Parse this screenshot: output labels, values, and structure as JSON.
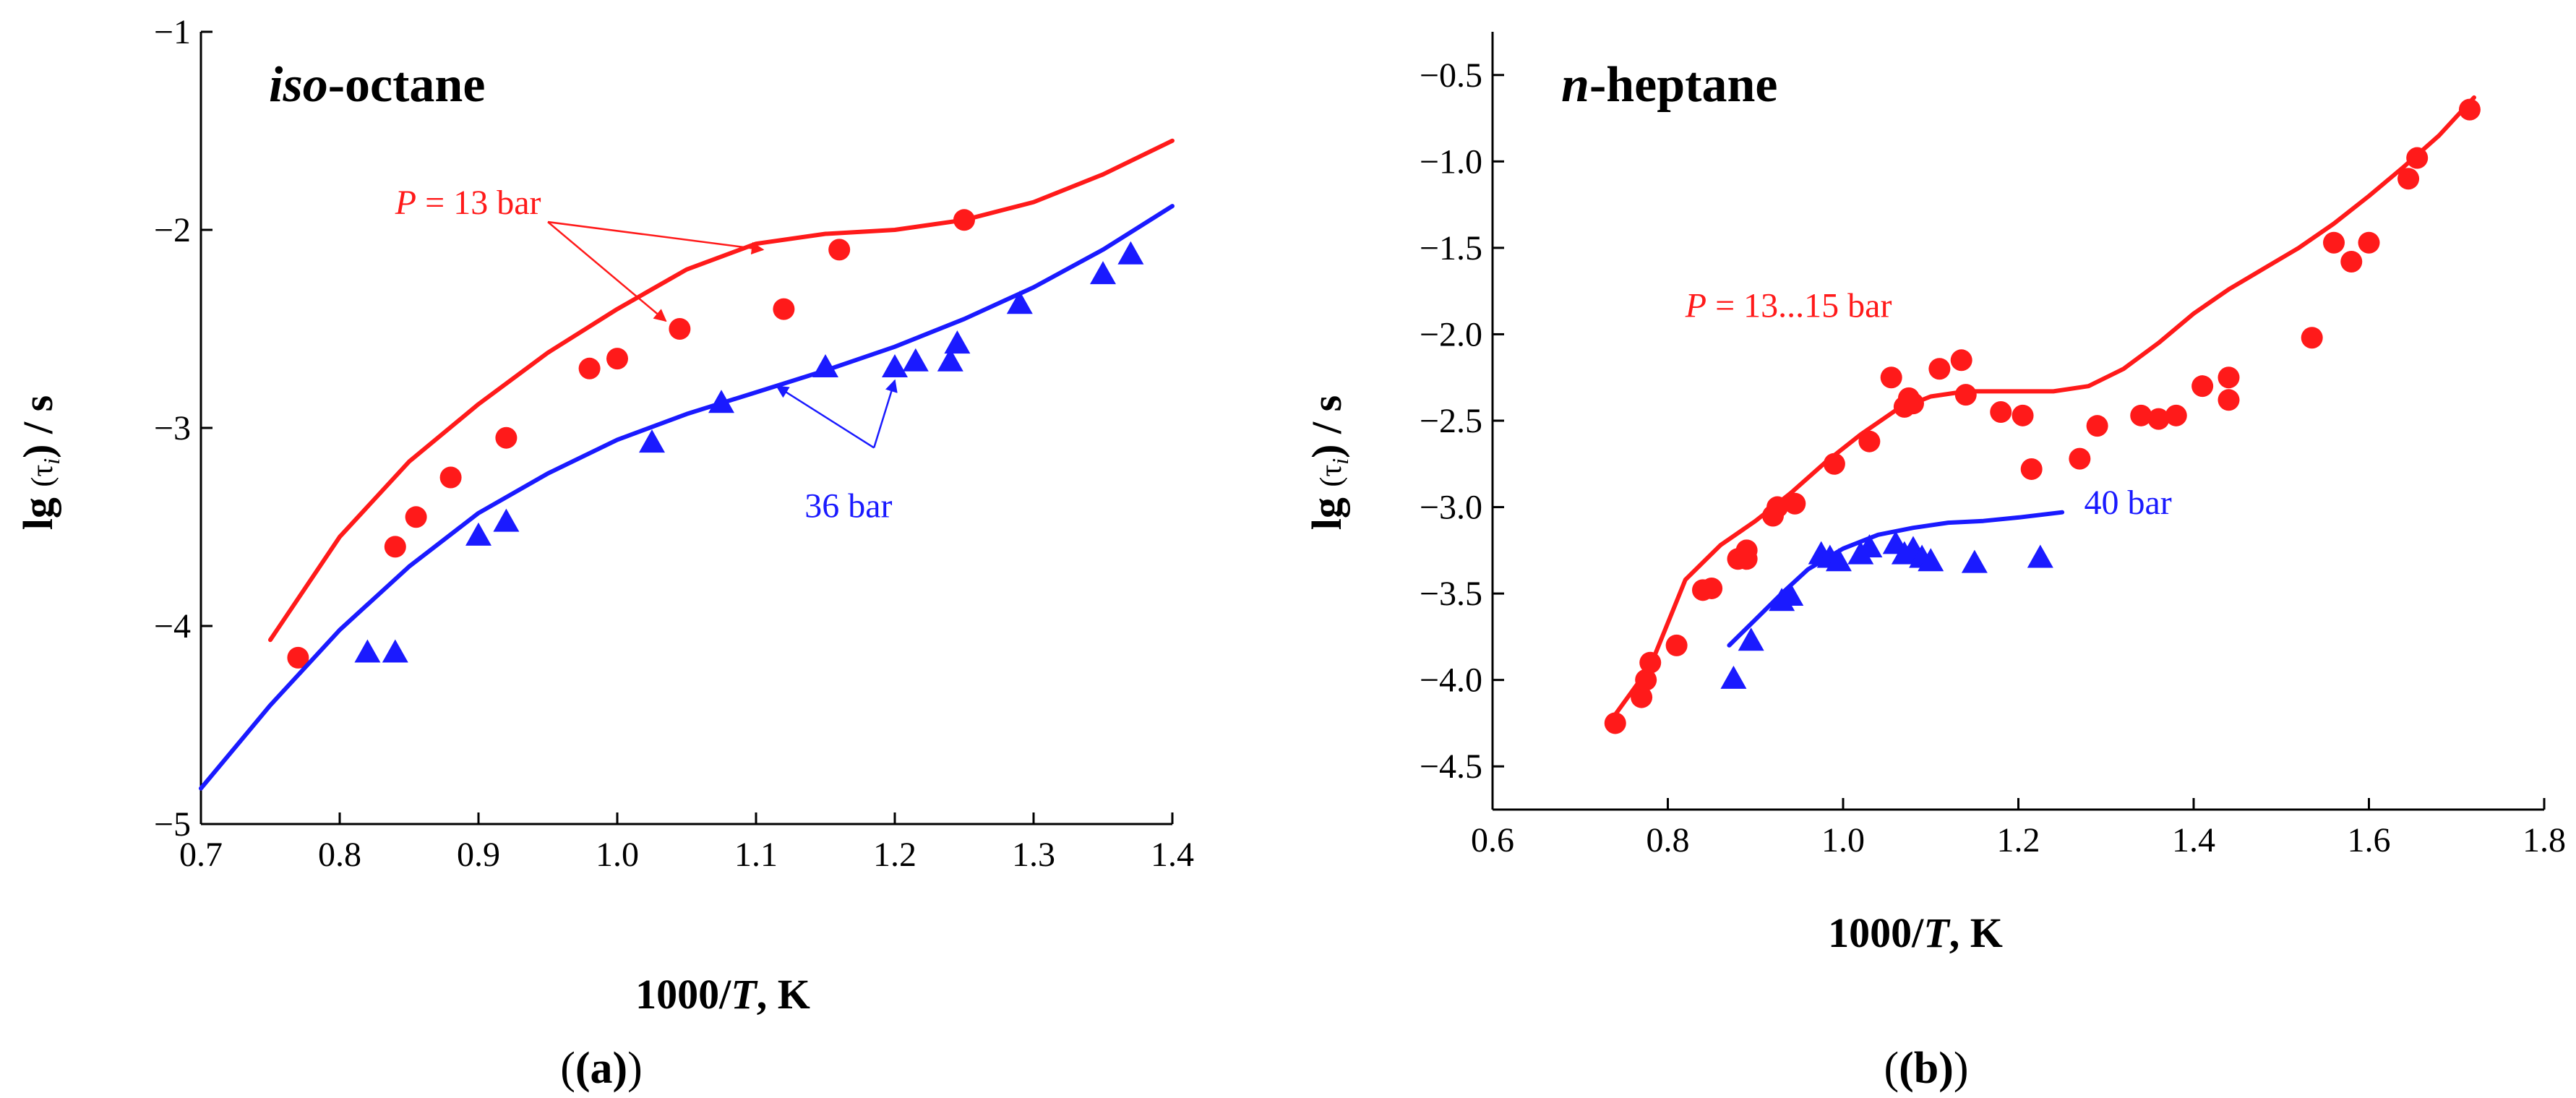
{
  "colors": {
    "red": "#ff1a1a",
    "blue": "#1a1aff",
    "axis": "#000000"
  },
  "chart_data": [
    {
      "type": "scatter",
      "title_italic": "iso",
      "title_rest": "-octane",
      "xlabel_pre": "1000/",
      "xlabel_var": "T",
      "xlabel_post": ", K",
      "ylabel_pre": "lg ",
      "ylabel_sym": "(τ",
      "ylabel_sub": "i",
      "ylabel_post": ") / s",
      "xlim": [
        0.7,
        1.4
      ],
      "ylim": [
        -5,
        -1
      ],
      "xticks": [
        0.7,
        0.8,
        0.9,
        1.0,
        1.1,
        1.2,
        1.3,
        1.4
      ],
      "xtick_labels": [
        "0.7",
        "0.8",
        "0.9",
        "1.0",
        "1.1",
        "1.2",
        "1.3",
        "1.4"
      ],
      "yticks": [
        -5,
        -4,
        -3,
        -2,
        -1
      ],
      "ytick_labels": [
        "−5",
        "−4",
        "−3",
        "−2",
        "−1"
      ],
      "caption": "(a)",
      "series": [
        {
          "name": "P = 13 bar",
          "color": "#ff1a1a",
          "marker": "circle",
          "points": [
            [
              0.77,
              -4.16
            ],
            [
              0.84,
              -3.6
            ],
            [
              0.855,
              -3.45
            ],
            [
              0.88,
              -3.25
            ],
            [
              0.92,
              -3.05
            ],
            [
              0.98,
              -2.7
            ],
            [
              1.0,
              -2.65
            ],
            [
              1.045,
              -2.5
            ],
            [
              1.12,
              -2.4
            ],
            [
              1.16,
              -2.1
            ],
            [
              1.25,
              -1.95
            ]
          ],
          "curve": [
            [
              0.75,
              -4.07
            ],
            [
              0.8,
              -3.55
            ],
            [
              0.85,
              -3.17
            ],
            [
              0.9,
              -2.88
            ],
            [
              0.95,
              -2.62
            ],
            [
              1.0,
              -2.4
            ],
            [
              1.05,
              -2.2
            ],
            [
              1.1,
              -2.07
            ],
            [
              1.15,
              -2.02
            ],
            [
              1.2,
              -2.0
            ],
            [
              1.25,
              -1.95
            ],
            [
              1.3,
              -1.86
            ],
            [
              1.35,
              -1.72
            ],
            [
              1.4,
              -1.55
            ]
          ]
        },
        {
          "name": "36 bar",
          "color": "#1a1aff",
          "marker": "triangle",
          "points": [
            [
              0.82,
              -4.14
            ],
            [
              0.84,
              -4.14
            ],
            [
              0.9,
              -3.55
            ],
            [
              0.92,
              -3.48
            ],
            [
              1.025,
              -3.08
            ],
            [
              1.075,
              -2.88
            ],
            [
              1.15,
              -2.7
            ],
            [
              1.2,
              -2.7
            ],
            [
              1.215,
              -2.67
            ],
            [
              1.24,
              -2.67
            ],
            [
              1.245,
              -2.58
            ],
            [
              1.29,
              -2.38
            ],
            [
              1.35,
              -2.23
            ],
            [
              1.37,
              -2.13
            ]
          ],
          "curve": [
            [
              0.7,
              -4.82
            ],
            [
              0.75,
              -4.4
            ],
            [
              0.8,
              -4.02
            ],
            [
              0.85,
              -3.7
            ],
            [
              0.9,
              -3.43
            ],
            [
              0.95,
              -3.23
            ],
            [
              1.0,
              -3.06
            ],
            [
              1.05,
              -2.93
            ],
            [
              1.1,
              -2.82
            ],
            [
              1.15,
              -2.71
            ],
            [
              1.2,
              -2.59
            ],
            [
              1.25,
              -2.45
            ],
            [
              1.3,
              -2.29
            ],
            [
              1.35,
              -2.1
            ],
            [
              1.4,
              -1.88
            ]
          ]
        }
      ],
      "annotations": [
        {
          "text_var": "P",
          "text_rest": " = 13 bar",
          "color": "#ff1a1a",
          "at": [
            0.84,
            -1.92
          ],
          "anchor": "start",
          "arrows": [
            {
              "from": [
                0.95,
                -1.96
              ],
              "to": [
                1.035,
                -2.46
              ]
            },
            {
              "from": [
                0.95,
                -1.96
              ],
              "to": [
                1.105,
                -2.1
              ]
            }
          ]
        },
        {
          "text_var": "",
          "text_rest": "36 bar",
          "color": "#1a1aff",
          "at": [
            1.135,
            -3.45
          ],
          "anchor": "start",
          "arrows": [
            {
              "from": [
                1.185,
                -3.1
              ],
              "to": [
                1.115,
                -2.79
              ]
            },
            {
              "from": [
                1.185,
                -3.1
              ],
              "to": [
                1.2,
                -2.76
              ]
            }
          ]
        }
      ]
    },
    {
      "type": "scatter",
      "title_italic": "n",
      "title_rest": "-heptane",
      "xlabel_pre": "1000/",
      "xlabel_var": "T",
      "xlabel_post": ", K",
      "ylabel_pre": "lg ",
      "ylabel_sym": "(τ",
      "ylabel_sub": "i",
      "ylabel_post": ") / s",
      "xlim": [
        0.6,
        1.8
      ],
      "ylim": [
        -4.75,
        -0.25
      ],
      "xticks": [
        0.6,
        0.8,
        1.0,
        1.2,
        1.4,
        1.6,
        1.8
      ],
      "xtick_labels": [
        "0.6",
        "0.8",
        "1.0",
        "1.2",
        "1.4",
        "1.6",
        "1.8"
      ],
      "yticks": [
        -4.5,
        -4.0,
        -3.5,
        -3.0,
        -2.5,
        -2.0,
        -1.5,
        -1.0,
        -0.5
      ],
      "ytick_labels": [
        "−4.5",
        "−4.0",
        "−3.5",
        "−3.0",
        "−2.5",
        "−2.0",
        "−1.5",
        "−1.0",
        "−0.5"
      ],
      "caption": "(b)",
      "series": [
        {
          "name": "P = 13...15 bar",
          "color": "#ff1a1a",
          "marker": "circle",
          "points": [
            [
              0.74,
              -4.25
            ],
            [
              0.77,
              -4.1
            ],
            [
              0.775,
              -4.0
            ],
            [
              0.78,
              -3.9
            ],
            [
              0.81,
              -3.8
            ],
            [
              0.84,
              -3.48
            ],
            [
              0.85,
              -3.47
            ],
            [
              0.88,
              -3.3
            ],
            [
              0.89,
              -3.25
            ],
            [
              0.89,
              -3.3
            ],
            [
              0.92,
              -3.05
            ],
            [
              0.925,
              -3.0
            ],
            [
              0.945,
              -2.98
            ],
            [
              0.99,
              -2.75
            ],
            [
              1.03,
              -2.62
            ],
            [
              1.055,
              -2.25
            ],
            [
              1.07,
              -2.42
            ],
            [
              1.075,
              -2.37
            ],
            [
              1.08,
              -2.4
            ],
            [
              1.11,
              -2.2
            ],
            [
              1.135,
              -2.15
            ],
            [
              1.14,
              -2.35
            ],
            [
              1.18,
              -2.45
            ],
            [
              1.205,
              -2.47
            ],
            [
              1.215,
              -2.78
            ],
            [
              1.27,
              -2.72
            ],
            [
              1.29,
              -2.53
            ],
            [
              1.34,
              -2.47
            ],
            [
              1.36,
              -2.49
            ],
            [
              1.38,
              -2.47
            ],
            [
              1.41,
              -2.3
            ],
            [
              1.44,
              -2.25
            ],
            [
              1.44,
              -2.38
            ],
            [
              1.535,
              -2.02
            ],
            [
              1.56,
              -1.47
            ],
            [
              1.58,
              -1.58
            ],
            [
              1.6,
              -1.47
            ],
            [
              1.645,
              -1.1
            ],
            [
              1.655,
              -0.98
            ],
            [
              1.715,
              -0.7
            ]
          ],
          "curve": [
            [
              0.74,
              -4.2
            ],
            [
              0.78,
              -3.92
            ],
            [
              0.82,
              -3.42
            ],
            [
              0.86,
              -3.22
            ],
            [
              0.9,
              -3.08
            ],
            [
              0.94,
              -2.92
            ],
            [
              0.98,
              -2.74
            ],
            [
              1.02,
              -2.58
            ],
            [
              1.06,
              -2.44
            ],
            [
              1.1,
              -2.36
            ],
            [
              1.14,
              -2.33
            ],
            [
              1.2,
              -2.33
            ],
            [
              1.24,
              -2.33
            ],
            [
              1.28,
              -2.3
            ],
            [
              1.32,
              -2.2
            ],
            [
              1.36,
              -2.05
            ],
            [
              1.4,
              -1.88
            ],
            [
              1.44,
              -1.74
            ],
            [
              1.48,
              -1.62
            ],
            [
              1.52,
              -1.5
            ],
            [
              1.56,
              -1.36
            ],
            [
              1.6,
              -1.2
            ],
            [
              1.64,
              -1.03
            ],
            [
              1.68,
              -0.85
            ],
            [
              1.72,
              -0.63
            ]
          ]
        },
        {
          "name": "40 bar",
          "color": "#1a1aff",
          "marker": "triangle",
          "points": [
            [
              0.875,
              -4.0
            ],
            [
              0.895,
              -3.78
            ],
            [
              0.93,
              -3.55
            ],
            [
              0.94,
              -3.52
            ],
            [
              0.975,
              -3.28
            ],
            [
              0.985,
              -3.3
            ],
            [
              0.995,
              -3.32
            ],
            [
              1.02,
              -3.28
            ],
            [
              1.03,
              -3.24
            ],
            [
              1.06,
              -3.22
            ],
            [
              1.07,
              -3.28
            ],
            [
              1.08,
              -3.25
            ],
            [
              1.09,
              -3.3
            ],
            [
              1.1,
              -3.32
            ],
            [
              1.15,
              -3.33
            ],
            [
              1.225,
              -3.3
            ]
          ],
          "curve": [
            [
              0.87,
              -3.8
            ],
            [
              0.9,
              -3.65
            ],
            [
              0.93,
              -3.5
            ],
            [
              0.96,
              -3.36
            ],
            [
              1.0,
              -3.24
            ],
            [
              1.04,
              -3.16
            ],
            [
              1.08,
              -3.12
            ],
            [
              1.12,
              -3.09
            ],
            [
              1.16,
              -3.08
            ],
            [
              1.2,
              -3.06
            ],
            [
              1.25,
              -3.03
            ]
          ]
        }
      ],
      "annotations": [
        {
          "text_var": "P",
          "text_rest": " = 13...15 bar",
          "color": "#ff1a1a",
          "at": [
            0.82,
            -1.9
          ],
          "anchor": "start",
          "arrows": []
        },
        {
          "text_var": "",
          "text_rest": "40 bar",
          "color": "#1a1aff",
          "at": [
            1.275,
            -3.04
          ],
          "anchor": "start",
          "arrows": []
        }
      ]
    }
  ]
}
